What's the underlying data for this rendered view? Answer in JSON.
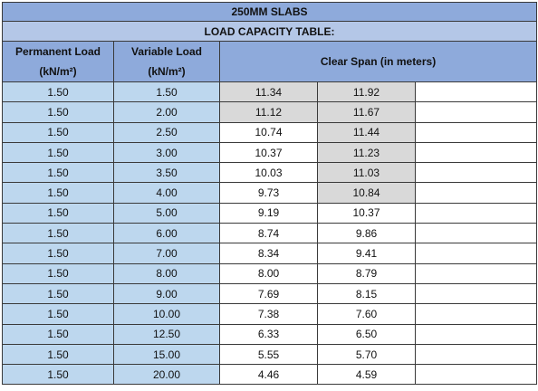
{
  "table": {
    "title": "250MM SLABS",
    "subtitle": "LOAD CAPACITY TABLE:",
    "headers": {
      "permanent_load": "Permanent Load",
      "permanent_unit": "(kN/m²)",
      "variable_load": "Variable Load",
      "variable_unit": "(kN/m²)",
      "clear_span": "Clear Span (in meters)"
    },
    "rows": [
      {
        "perm": "1.50",
        "vari": "1.50",
        "span1": "11.34",
        "span2": "11.92"
      },
      {
        "perm": "1.50",
        "vari": "2.00",
        "span1": "11.12",
        "span2": "11.67"
      },
      {
        "perm": "1.50",
        "vari": "2.50",
        "span1": "10.74",
        "span2": "11.44"
      },
      {
        "perm": "1.50",
        "vari": "3.00",
        "span1": "10.37",
        "span2": "11.23"
      },
      {
        "perm": "1.50",
        "vari": "3.50",
        "span1": "10.03",
        "span2": "11.03"
      },
      {
        "perm": "1.50",
        "vari": "4.00",
        "span1": "9.73",
        "span2": "10.84"
      },
      {
        "perm": "1.50",
        "vari": "5.00",
        "span1": "9.19",
        "span2": "10.37"
      },
      {
        "perm": "1.50",
        "vari": "6.00",
        "span1": "8.74",
        "span2": "9.86"
      },
      {
        "perm": "1.50",
        "vari": "7.00",
        "span1": "8.34",
        "span2": "9.41"
      },
      {
        "perm": "1.50",
        "vari": "8.00",
        "span1": "8.00",
        "span2": "8.79"
      },
      {
        "perm": "1.50",
        "vari": "9.00",
        "span1": "7.69",
        "span2": "8.15"
      },
      {
        "perm": "1.50",
        "vari": "10.00",
        "span1": "7.38",
        "span2": "7.60"
      },
      {
        "perm": "1.50",
        "vari": "12.50",
        "span1": "6.33",
        "span2": "6.50"
      },
      {
        "perm": "1.50",
        "vari": "15.00",
        "span1": "5.55",
        "span2": "5.70"
      },
      {
        "perm": "1.50",
        "vari": "20.00",
        "span1": "4.46",
        "span2": "4.59"
      }
    ],
    "colors": {
      "header_dark": "#8eaadb",
      "header_light": "#b4c7e7",
      "load_cell": "#bdd7ee",
      "span_shade": "#d9d9d9"
    }
  }
}
